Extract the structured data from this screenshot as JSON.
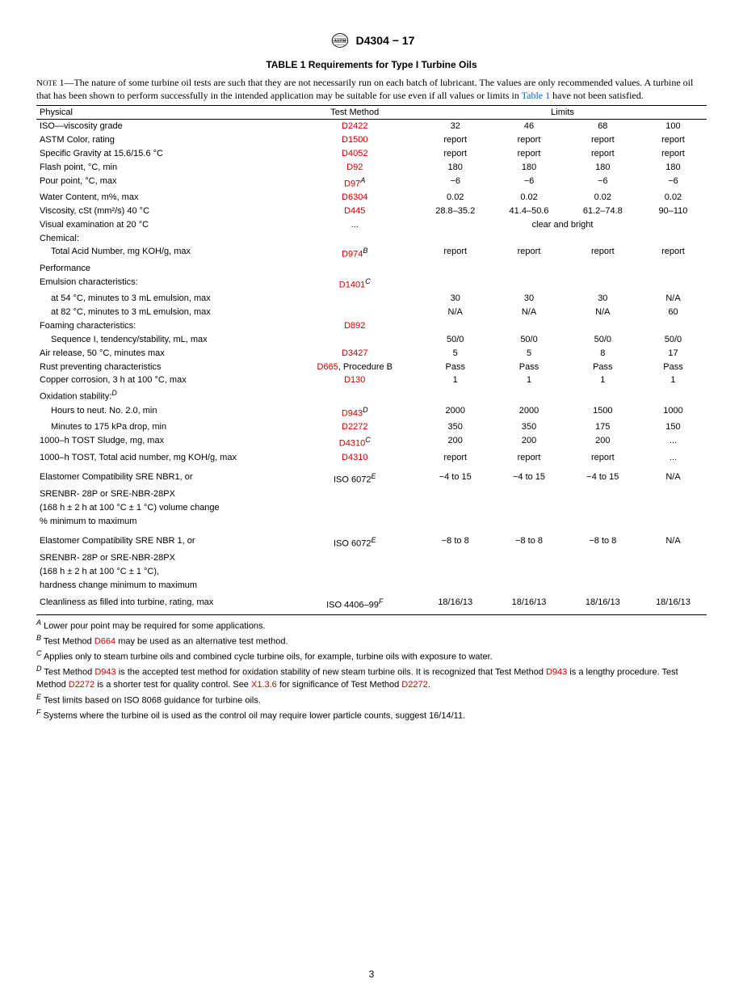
{
  "header": {
    "doc_id": "D4304 − 17"
  },
  "table_title": "TABLE 1 Requirements for Type I Turbine Oils",
  "note": {
    "label": "Note",
    "num": "1—",
    "text1": "The nature of some turbine oil tests are such that they are not necessarily run on each batch of lubricant. The values are only recommended values. A turbine oil that has been shown to perform successfully in the intended application may be suitable for use even if all values or limits in ",
    "link1": "Table 1",
    "text2": " have not been satisfied."
  },
  "columns": {
    "physical": "Physical",
    "method": "Test Method",
    "limits": "Limits"
  },
  "rows": [
    {
      "label": "ISO—viscosity grade",
      "method": "D2422",
      "method_ref": true,
      "v": [
        "32",
        "46",
        "68",
        "100"
      ]
    },
    {
      "label": "ASTM Color, rating",
      "method": "D1500",
      "method_ref": true,
      "v": [
        "report",
        "report",
        "report",
        "report"
      ]
    },
    {
      "label": "Specific Gravity at 15.6/15.6 °C",
      "method": "D4052",
      "method_ref": true,
      "v": [
        "report",
        "report",
        "report",
        "report"
      ]
    },
    {
      "label": "Flash point, °C, min",
      "method": "D92",
      "method_ref": true,
      "v": [
        "180",
        "180",
        "180",
        "180"
      ]
    },
    {
      "label": "Pour point, °C, max",
      "method": "D97",
      "method_ref": true,
      "sup": "A",
      "v": [
        "−6",
        "−6",
        "−6",
        "−6"
      ]
    },
    {
      "label": "Water Content, m%, max",
      "method": "D6304",
      "method_ref": true,
      "v": [
        "0.02",
        "0.02",
        "0.02",
        "0.02"
      ]
    },
    {
      "label": "Viscosity, cSt (mm²/s) 40 °C",
      "method": "D445",
      "method_ref": true,
      "v": [
        "28.8–35.2",
        "41.4–50.6",
        "61.2–74.8",
        "90–110"
      ]
    },
    {
      "label": "Visual examination at 20 °C",
      "method": "...",
      "span": "clear and bright"
    },
    {
      "label": "Chemical:",
      "section": true
    },
    {
      "label": "Total Acid Number, mg KOH/g, max",
      "indent": true,
      "method": "D974",
      "method_ref": true,
      "sup": "B",
      "v": [
        "report",
        "report",
        "report",
        "report"
      ]
    },
    {
      "label": "Performance",
      "section": true
    },
    {
      "label": "Emulsion characteristics:",
      "method": "D1401",
      "method_ref": true,
      "sup": "C"
    },
    {
      "label": "at 54 °C, minutes to 3 mL emulsion, max",
      "indent": true,
      "v": [
        "30",
        "30",
        "30",
        "N/A"
      ]
    },
    {
      "label": "at 82 °C, minutes to 3 mL emulsion, max",
      "indent": true,
      "v": [
        "N/A",
        "N/A",
        "N/A",
        "60"
      ]
    },
    {
      "label": "Foaming characteristics:",
      "method": "D892",
      "method_ref": true
    },
    {
      "label": "Sequence I, tendency/stability, mL, max",
      "indent": true,
      "v": [
        "50/0",
        "50/0",
        "50/0",
        "50/0"
      ]
    },
    {
      "label": "Air release, 50 °C, minutes max",
      "method": "D3427",
      "method_ref": true,
      "v": [
        "5",
        "5",
        "8",
        "17"
      ]
    },
    {
      "label": "Rust preventing characteristics",
      "method_html": "D665",
      "method_suffix": ", Procedure B",
      "v": [
        "Pass",
        "Pass",
        "Pass",
        "Pass"
      ]
    },
    {
      "label": "Copper corrosion, 3 h at 100 °C, max",
      "method": "D130",
      "method_ref": true,
      "v": [
        "1",
        "1",
        "1",
        "1"
      ]
    },
    {
      "label": "Oxidation stability:",
      "label_sup": "D"
    },
    {
      "label": "Hours to neut. No. 2.0, min",
      "indent": true,
      "method": "D943",
      "method_ref": true,
      "sup": "D",
      "v": [
        "2000",
        "2000",
        "1500",
        "1000"
      ]
    },
    {
      "label": "Minutes to 175 kPa drop, min",
      "indent": true,
      "method": "D2272",
      "method_ref": true,
      "v": [
        "350",
        "350",
        "175",
        "150"
      ]
    },
    {
      "label": "1000–h TOST Sludge, mg, max",
      "method": "D4310",
      "method_ref": true,
      "sup": "C",
      "v": [
        "200",
        "200",
        "200",
        "..."
      ]
    },
    {
      "label": "1000–h TOST, Total acid number, mg KOH/g, max",
      "method": "D4310",
      "method_ref": true,
      "v": [
        "report",
        "report",
        "report",
        "..."
      ]
    },
    {
      "spacer": true
    },
    {
      "label": "Elastomer Compatibility SRE NBR1, or",
      "method": "ISO 6072",
      "sup": "E",
      "v": [
        "−4 to 15",
        "−4 to 15",
        "−4 to 15",
        "N/A"
      ]
    },
    {
      "label": "SRENBR- 28P or SRE-NBR-28PX"
    },
    {
      "label": "(168 h ± 2 h at 100 °C ± 1 °C) volume change"
    },
    {
      "label": "% minimum to maximum"
    },
    {
      "spacer": true
    },
    {
      "label": "Elastomer Compatibility SRE NBR 1, or",
      "method": "ISO 6072",
      "sup": "E",
      "v": [
        "−8 to 8",
        "−8 to 8",
        "−8 to 8",
        "N/A"
      ]
    },
    {
      "label": "SRENBR- 28P or SRE-NBR-28PX"
    },
    {
      "label": "(168 h ± 2 h at 100 °C ± 1 °C),"
    },
    {
      "label": "hardness change minimum to maximum"
    },
    {
      "label": "Cleanliness as filled into turbine, rating, max",
      "method": "ISO 4406–99",
      "sup": "F",
      "v": [
        "18/16/13",
        "18/16/13",
        "18/16/13",
        "18/16/13"
      ],
      "last": true
    }
  ],
  "footnotes": [
    {
      "sup": "A",
      "text": " Lower pour point may be required for some applications."
    },
    {
      "sup": "B",
      "pre": " Test Method ",
      "ref1": "D664",
      "post": " may be used as an alternative test method."
    },
    {
      "sup": "C",
      "text": " Applies only to steam turbine oils and combined cycle turbine oils, for example, turbine oils with exposure to water."
    },
    {
      "sup": "D",
      "pre": " Test Method ",
      "ref1": "D943",
      "mid1": " is the accepted test method for oxidation stability of new steam turbine oils. It is recognized that Test Method ",
      "ref2": "D943",
      "mid2": " is a lengthy procedure. Test Method ",
      "ref3": "D2272",
      "mid3": " is a shorter test for quality control. See ",
      "ref4": "X1.3.6",
      "mid4": " for significance of Test Method ",
      "ref5": "D2272",
      "post": "."
    },
    {
      "sup": "E",
      "text": " Test limits based on ISO 8068 guidance for turbine oils."
    },
    {
      "sup": "F",
      "text": " Systems where the turbine oil is used as the control oil may require lower particle counts, suggest 16/14/11."
    }
  ],
  "page_number": "3"
}
